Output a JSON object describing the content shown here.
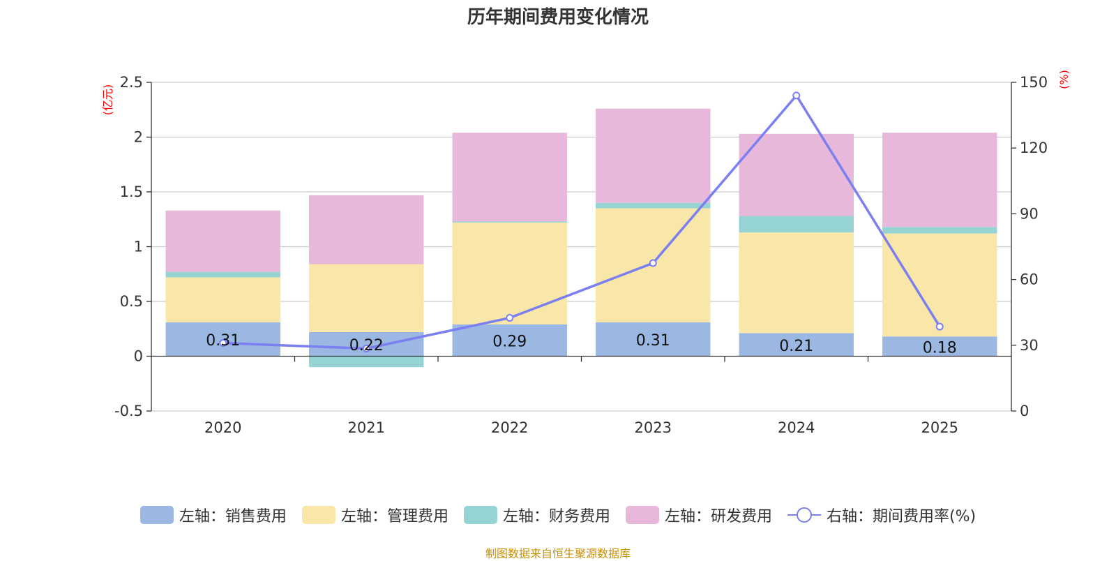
{
  "chart_data": {
    "type": "bar",
    "title": "历年期间费用变化情况",
    "categories": [
      "2020",
      "2021",
      "2022",
      "2023",
      "2024",
      "2025"
    ],
    "left_axis": {
      "unit": "(亿元)",
      "ylim": [
        -0.5,
        2.5
      ],
      "ticks": [
        -0.5,
        0,
        0.5,
        1,
        1.5,
        2,
        2.5
      ],
      "tick_labels": [
        "-0.5",
        "0",
        "0.5",
        "1",
        "1.5",
        "2",
        "2.5"
      ]
    },
    "right_axis": {
      "unit": "(%)",
      "ylim": [
        0,
        150
      ],
      "ticks": [
        0,
        30,
        60,
        90,
        120,
        150
      ],
      "tick_labels": [
        "0",
        "30",
        "60",
        "90",
        "120",
        "150"
      ]
    },
    "series": [
      {
        "name": "左轴：销售费用",
        "type": "bar",
        "axis": "left",
        "color": "#9bb8e3",
        "values": [
          0.31,
          0.22,
          0.29,
          0.31,
          0.21,
          0.18
        ],
        "labels": [
          "0.31",
          "0.22",
          "0.29",
          "0.31",
          "0.21",
          "0.18"
        ]
      },
      {
        "name": "左轴：管理费用",
        "type": "bar",
        "axis": "left",
        "color": "#f8e7a8",
        "values": [
          0.41,
          0.62,
          0.93,
          1.04,
          0.92,
          0.94
        ]
      },
      {
        "name": "左轴：财务费用",
        "type": "bar",
        "axis": "left",
        "color": "#96d4d4",
        "values": [
          0.05,
          -0.1,
          0.01,
          0.05,
          0.15,
          0.06
        ]
      },
      {
        "name": "左轴：研发费用",
        "type": "bar",
        "axis": "left",
        "color": "#e8b8da",
        "values": [
          0.56,
          0.63,
          0.81,
          0.86,
          0.75,
          0.86
        ]
      },
      {
        "name": "右轴：期间费用率(%)",
        "type": "line",
        "axis": "right",
        "color": "#7b7ff0",
        "values": [
          31.0,
          28.5,
          42.5,
          67.5,
          144.0,
          38.5
        ]
      }
    ]
  },
  "source": "制图数据来自恒生聚源数据库"
}
